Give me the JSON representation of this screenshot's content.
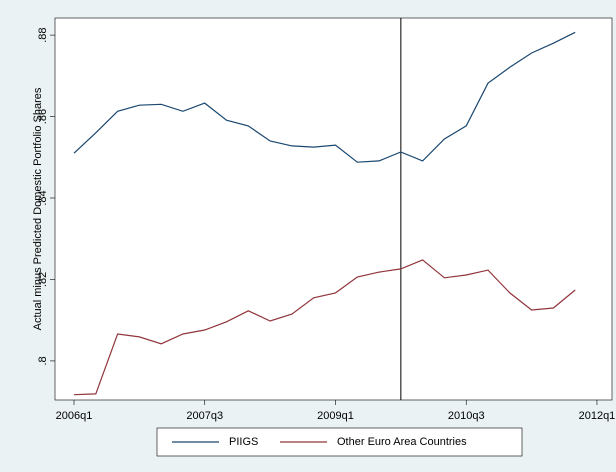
{
  "chart_data": {
    "type": "line",
    "y_label": "Actual minus Predicted Domestic Portfolio Shares",
    "categories": [
      "2006q1",
      null,
      null,
      null,
      null,
      null,
      "2007q3",
      null,
      null,
      null,
      null,
      null,
      "2009q1",
      null,
      null,
      null,
      null,
      null,
      "2010q3",
      null,
      null,
      null,
      null,
      null,
      "2012q1"
    ],
    "series": [
      {
        "name": "PIIGS",
        "color": "#1a476f",
        "values": [
          0.851,
          0.856,
          0.8613,
          0.8628,
          0.863,
          0.8613,
          0.8633,
          0.8591,
          0.8577,
          0.854,
          0.8528,
          0.8525,
          0.853,
          0.8488,
          0.8491,
          0.8513,
          0.8491,
          0.8545,
          0.8577,
          0.8682,
          0.8721,
          0.8756,
          0.878,
          0.8807,
          null
        ]
      },
      {
        "name": "Other Euro Area Countries",
        "color": "#90353b",
        "values": [
          0.7917,
          0.7919,
          0.8066,
          0.8059,
          0.8042,
          0.8066,
          0.8076,
          0.8096,
          0.8123,
          0.8098,
          0.8115,
          0.8155,
          0.8167,
          0.8206,
          0.8218,
          0.8226,
          0.8248,
          0.8204,
          0.8211,
          0.8223,
          0.8167,
          0.8125,
          0.813,
          0.8174,
          null
        ]
      }
    ],
    "ylim": [
      0.7904,
      0.8842
    ],
    "yticks": [
      {
        "value": 0.8,
        "label": ".8"
      },
      {
        "value": 0.82,
        "label": ".82"
      },
      {
        "value": 0.84,
        "label": ".84"
      },
      {
        "value": 0.86,
        "label": ".86"
      },
      {
        "value": 0.88,
        "label": ".88"
      }
    ],
    "xline": 15,
    "legend": "bottom"
  }
}
